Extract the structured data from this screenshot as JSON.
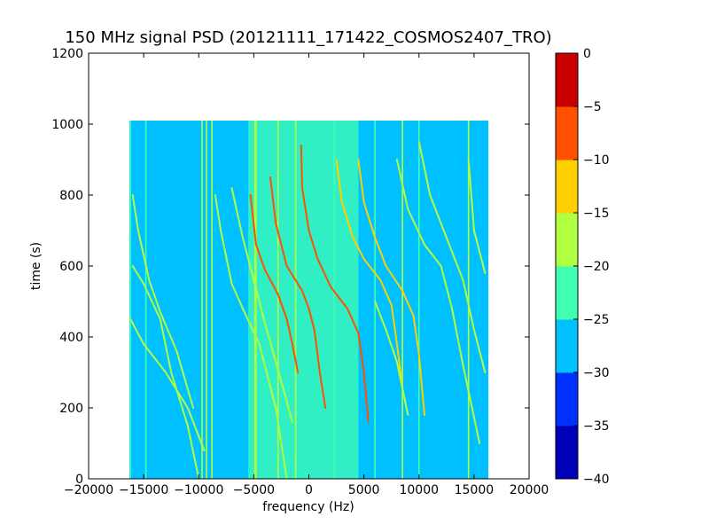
{
  "chart_data": {
    "type": "heatmap",
    "title": "150 MHz signal PSD (20121111_171422_COSMOS2407_TRO)",
    "xlabel": "frequency (Hz)",
    "ylabel": "time (s)",
    "xlim": [
      -20000,
      20000
    ],
    "ylim": [
      0,
      1200
    ],
    "xticks": [
      -20000,
      -15000,
      -10000,
      -5000,
      0,
      5000,
      10000,
      15000,
      20000
    ],
    "xtick_labels": [
      "−20000",
      "−15000",
      "−10000",
      "−5000",
      "0",
      "5000",
      "10000",
      "15000",
      "20000"
    ],
    "yticks": [
      0,
      200,
      400,
      600,
      800,
      1000,
      1200
    ],
    "ytick_labels": [
      "0",
      "200",
      "400",
      "600",
      "800",
      "1000",
      "1200"
    ],
    "data_extent": {
      "x": [
        -16300,
        16300
      ],
      "y": [
        0,
        1010
      ]
    },
    "colorbar": {
      "levels": [
        -40,
        -35,
        -30,
        -25,
        -20,
        -15,
        -10,
        -5,
        0
      ],
      "tick_labels": [
        "−40",
        "−35",
        "−30",
        "−25",
        "−20",
        "−15",
        "−10",
        "−5",
        "0"
      ],
      "colors": [
        "#0000b8",
        "#0030ff",
        "#00c0ff",
        "#40ffb0",
        "#b0ff40",
        "#ffd000",
        "#ff5000",
        "#c80000"
      ]
    },
    "background_level": -27,
    "center_band": {
      "x": [
        -5500,
        4500
      ],
      "level": -22
    },
    "vertical_lines": [
      {
        "x": -16200,
        "level": -22
      },
      {
        "x": -14800,
        "level": -22
      },
      {
        "x": -9700,
        "level": -18
      },
      {
        "x": -9300,
        "level": -18
      },
      {
        "x": -8800,
        "level": -18
      },
      {
        "x": -4900,
        "level": -18
      },
      {
        "x": -4800,
        "level": -18
      },
      {
        "x": -2800,
        "level": -20
      },
      {
        "x": -1200,
        "level": -20
      },
      {
        "x": 2300,
        "level": -22
      },
      {
        "x": 6000,
        "level": -22
      },
      {
        "x": 8500,
        "level": -20
      },
      {
        "x": 10000,
        "level": -22
      },
      {
        "x": 14500,
        "level": -20
      }
    ],
    "traces": [
      {
        "name": "",
        "level": -20,
        "points": [
          [
            -16000,
            600
          ],
          [
            -15000,
            550
          ],
          [
            -13500,
            450
          ],
          [
            -12500,
            300
          ],
          [
            -11000,
            150
          ],
          [
            -10000,
            0
          ]
        ]
      },
      {
        "name": "",
        "level": -20,
        "points": [
          [
            -16000,
            800
          ],
          [
            -15500,
            700
          ],
          [
            -14500,
            560
          ],
          [
            -13500,
            470
          ],
          [
            -12000,
            360
          ],
          [
            -10500,
            200
          ]
        ]
      },
      {
        "name": "",
        "level": -20,
        "points": [
          [
            -16200,
            450
          ],
          [
            -15000,
            380
          ],
          [
            -13000,
            300
          ],
          [
            -11000,
            200
          ],
          [
            -9500,
            80
          ]
        ]
      },
      {
        "name": "",
        "level": -20,
        "points": [
          [
            -8500,
            800
          ],
          [
            -8000,
            700
          ],
          [
            -7000,
            550
          ],
          [
            -6000,
            480
          ],
          [
            -4500,
            380
          ],
          [
            -3000,
            200
          ],
          [
            -2000,
            0
          ]
        ]
      },
      {
        "name": "",
        "level": -20,
        "points": [
          [
            -7000,
            820
          ],
          [
            -6000,
            680
          ],
          [
            -5000,
            560
          ],
          [
            -4000,
            440
          ],
          [
            -3000,
            330
          ],
          [
            -1500,
            160
          ]
        ]
      },
      {
        "name": "",
        "level": -10,
        "points": [
          [
            -5300,
            800
          ],
          [
            -4800,
            660
          ],
          [
            -4000,
            590
          ],
          [
            -2800,
            520
          ],
          [
            -2000,
            450
          ],
          [
            -1500,
            380
          ],
          [
            -1000,
            300
          ]
        ]
      },
      {
        "name": "",
        "level": -8,
        "points": [
          [
            -3500,
            850
          ],
          [
            -3000,
            720
          ],
          [
            -2000,
            600
          ],
          [
            -600,
            530
          ],
          [
            0,
            480
          ],
          [
            500,
            420
          ],
          [
            1000,
            300
          ],
          [
            1500,
            200
          ]
        ]
      },
      {
        "name": "",
        "level": -8,
        "points": [
          [
            -700,
            940
          ],
          [
            -600,
            820
          ],
          [
            0,
            700
          ],
          [
            800,
            620
          ],
          [
            2000,
            540
          ],
          [
            3500,
            480
          ],
          [
            4500,
            410
          ],
          [
            5000,
            300
          ],
          [
            5400,
            160
          ]
        ]
      },
      {
        "name": "",
        "level": -12,
        "points": [
          [
            2500,
            900
          ],
          [
            3000,
            780
          ],
          [
            4000,
            680
          ],
          [
            5000,
            620
          ],
          [
            6500,
            560
          ],
          [
            7500,
            490
          ],
          [
            8000,
            380
          ],
          [
            8500,
            260
          ]
        ]
      },
      {
        "name": "",
        "level": -12,
        "points": [
          [
            4500,
            900
          ],
          [
            5000,
            780
          ],
          [
            6000,
            680
          ],
          [
            7000,
            600
          ],
          [
            8500,
            530
          ],
          [
            9500,
            460
          ],
          [
            10000,
            350
          ],
          [
            10500,
            180
          ]
        ]
      },
      {
        "name": "",
        "level": -20,
        "points": [
          [
            8000,
            900
          ],
          [
            9000,
            760
          ],
          [
            10500,
            660
          ],
          [
            12000,
            600
          ],
          [
            13000,
            480
          ],
          [
            14000,
            320
          ],
          [
            15500,
            100
          ]
        ]
      },
      {
        "name": "",
        "level": -20,
        "points": [
          [
            10000,
            950
          ],
          [
            11000,
            800
          ],
          [
            12500,
            680
          ],
          [
            14000,
            560
          ],
          [
            15000,
            420
          ],
          [
            16000,
            300
          ]
        ]
      },
      {
        "name": "",
        "level": -20,
        "points": [
          [
            6000,
            500
          ],
          [
            7000,
            420
          ],
          [
            8000,
            330
          ],
          [
            9000,
            180
          ]
        ]
      },
      {
        "name": "",
        "level": -20,
        "points": [
          [
            14500,
            900
          ],
          [
            15000,
            700
          ],
          [
            16000,
            580
          ]
        ]
      }
    ]
  }
}
